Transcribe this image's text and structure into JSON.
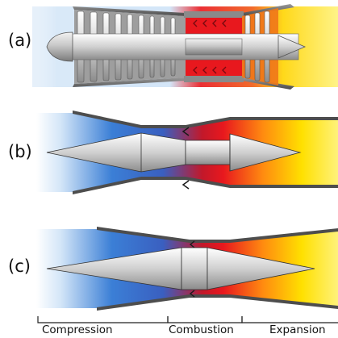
{
  "panels": [
    {
      "label": "(a)"
    },
    {
      "label": "(b)"
    },
    {
      "label": "(c)"
    }
  ],
  "stages": [
    {
      "label": "Compression"
    },
    {
      "label": "Combustion"
    },
    {
      "label": "Expansion"
    }
  ],
  "colors": {
    "cold": "#3b7fd6",
    "hot": "#e8181e",
    "exhaust": "#ffe600",
    "casing": "#555555",
    "metal": "#bdbdbd"
  }
}
